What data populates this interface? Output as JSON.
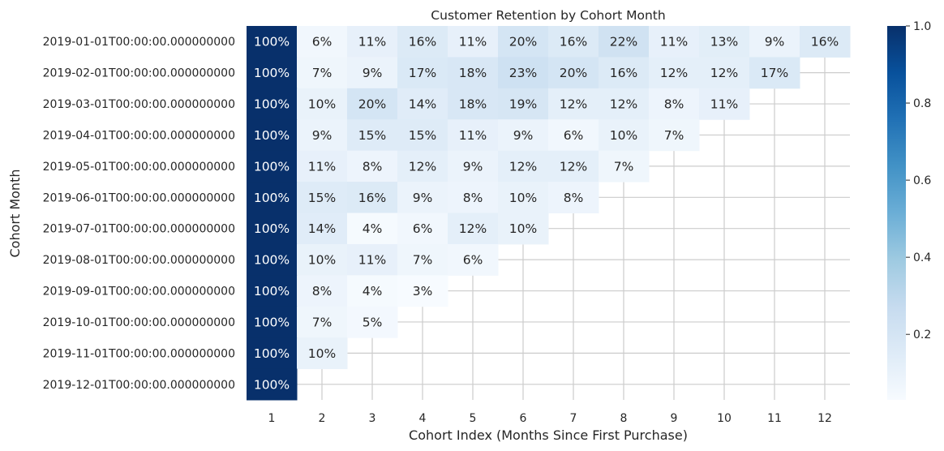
{
  "chart_data": {
    "type": "heatmap",
    "title": "Customer Retention by Cohort Month",
    "xlabel": "Cohort Index (Months Since First Purchase)",
    "ylabel": "Cohort Month",
    "x": [
      "1",
      "2",
      "3",
      "4",
      "5",
      "6",
      "7",
      "8",
      "9",
      "10",
      "11",
      "12"
    ],
    "y": [
      "2019-01-01T00:00:00.000000000",
      "2019-02-01T00:00:00.000000000",
      "2019-03-01T00:00:00.000000000",
      "2019-04-01T00:00:00.000000000",
      "2019-05-01T00:00:00.000000000",
      "2019-06-01T00:00:00.000000000",
      "2019-07-01T00:00:00.000000000",
      "2019-08-01T00:00:00.000000000",
      "2019-09-01T00:00:00.000000000",
      "2019-10-01T00:00:00.000000000",
      "2019-11-01T00:00:00.000000000",
      "2019-12-01T00:00:00.000000000"
    ],
    "values": [
      [
        1.0,
        0.06,
        0.11,
        0.16,
        0.11,
        0.2,
        0.16,
        0.22,
        0.11,
        0.13,
        0.09,
        0.16
      ],
      [
        1.0,
        0.07,
        0.09,
        0.17,
        0.18,
        0.23,
        0.2,
        0.16,
        0.12,
        0.12,
        0.17,
        null
      ],
      [
        1.0,
        0.1,
        0.2,
        0.14,
        0.18,
        0.19,
        0.12,
        0.12,
        0.08,
        0.11,
        null,
        null
      ],
      [
        1.0,
        0.09,
        0.15,
        0.15,
        0.11,
        0.09,
        0.06,
        0.1,
        0.07,
        null,
        null,
        null
      ],
      [
        1.0,
        0.11,
        0.08,
        0.12,
        0.09,
        0.12,
        0.12,
        0.07,
        null,
        null,
        null,
        null
      ],
      [
        1.0,
        0.15,
        0.16,
        0.09,
        0.08,
        0.1,
        0.08,
        null,
        null,
        null,
        null,
        null
      ],
      [
        1.0,
        0.14,
        0.04,
        0.06,
        0.12,
        0.1,
        null,
        null,
        null,
        null,
        null,
        null
      ],
      [
        1.0,
        0.1,
        0.11,
        0.07,
        0.06,
        null,
        null,
        null,
        null,
        null,
        null,
        null
      ],
      [
        1.0,
        0.08,
        0.04,
        0.03,
        null,
        null,
        null,
        null,
        null,
        null,
        null,
        null
      ],
      [
        1.0,
        0.07,
        0.05,
        null,
        null,
        null,
        null,
        null,
        null,
        null,
        null,
        null
      ],
      [
        1.0,
        0.1,
        null,
        null,
        null,
        null,
        null,
        null,
        null,
        null,
        null,
        null
      ],
      [
        1.0,
        null,
        null,
        null,
        null,
        null,
        null,
        null,
        null,
        null,
        null,
        null
      ]
    ],
    "annotations": [
      [
        "100%",
        "6%",
        "11%",
        "16%",
        "11%",
        "20%",
        "16%",
        "22%",
        "11%",
        "13%",
        "9%",
        "16%"
      ],
      [
        "100%",
        "7%",
        "9%",
        "17%",
        "18%",
        "23%",
        "20%",
        "16%",
        "12%",
        "12%",
        "17%",
        ""
      ],
      [
        "100%",
        "10%",
        "20%",
        "14%",
        "18%",
        "19%",
        "12%",
        "12%",
        "8%",
        "11%",
        "",
        ""
      ],
      [
        "100%",
        "9%",
        "15%",
        "15%",
        "11%",
        "9%",
        "6%",
        "10%",
        "7%",
        "",
        "",
        ""
      ],
      [
        "100%",
        "11%",
        "8%",
        "12%",
        "9%",
        "12%",
        "12%",
        "7%",
        "",
        "",
        "",
        ""
      ],
      [
        "100%",
        "15%",
        "16%",
        "9%",
        "8%",
        "10%",
        "8%",
        "",
        "",
        "",
        "",
        ""
      ],
      [
        "100%",
        "14%",
        "4%",
        "6%",
        "12%",
        "10%",
        "",
        "",
        "",
        "",
        "",
        ""
      ],
      [
        "100%",
        "10%",
        "11%",
        "7%",
        "6%",
        "",
        "",
        "",
        "",
        "",
        "",
        ""
      ],
      [
        "100%",
        "8%",
        "4%",
        "3%",
        "",
        "",
        "",
        "",
        "",
        "",
        "",
        ""
      ],
      [
        "100%",
        "7%",
        "5%",
        "",
        "",
        "",
        "",
        "",
        "",
        "",
        "",
        ""
      ],
      [
        "100%",
        "10%",
        "",
        "",
        "",
        "",
        "",
        "",
        "",
        "",
        "",
        ""
      ],
      [
        "100%",
        "",
        "",
        "",
        "",
        "",
        "",
        "",
        "",
        "",
        "",
        ""
      ]
    ],
    "colormap": "Blues",
    "vmin": 0.03,
    "vmax": 1.0,
    "colorbar": {
      "ticks": [
        0.2,
        0.4,
        0.6,
        0.8,
        1.0
      ],
      "tick_labels": [
        "0.2",
        "0.4",
        "0.6",
        "0.8",
        "1.0"
      ]
    },
    "grid": true,
    "grid_color": "#cccccc",
    "colors": [
      "#f7fbff",
      "#deebf7",
      "#c6dbef",
      "#9ecae1",
      "#6baed6",
      "#4292c6",
      "#2171b5",
      "#08519c",
      "#08306b"
    ],
    "dark_text_color": "#262626",
    "light_text_color": "#ffffff"
  }
}
